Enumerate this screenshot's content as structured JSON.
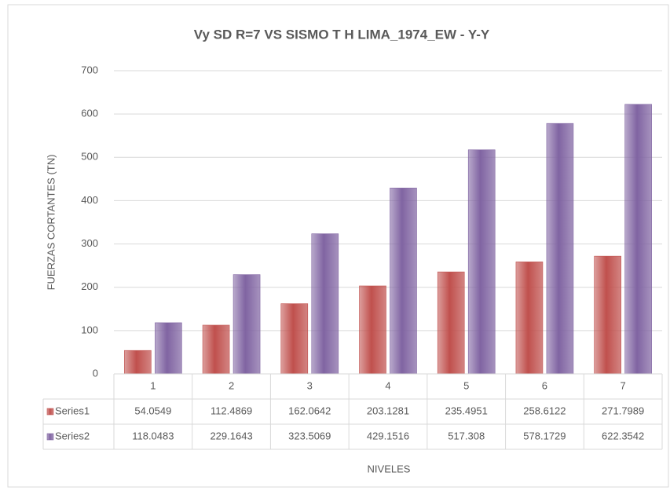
{
  "chart_data": {
    "type": "bar",
    "title": "Vy SD R=7 VS SISMO T H LIMA_1974_EW - Y-Y",
    "y_label": "FUERZAS CORTANTES (TN)",
    "x_label": "NIVELES",
    "categories": [
      "1",
      "2",
      "3",
      "4",
      "5",
      "6",
      "7"
    ],
    "series": [
      {
        "name": "Series1",
        "color": "#c0504d",
        "values": [
          54.0549,
          112.4869,
          162.0642,
          203.1281,
          235.4951,
          258.6122,
          271.7989
        ]
      },
      {
        "name": "Series2",
        "color": "#8064a2",
        "values": [
          118.0483,
          229.1643,
          323.5069,
          429.1516,
          517.308,
          578.1729,
          622.3542
        ]
      }
    ],
    "ylim": [
      0,
      700
    ],
    "yticks": [
      0,
      100,
      200,
      300,
      400,
      500,
      600,
      700
    ],
    "grid": true,
    "data_table": true
  }
}
